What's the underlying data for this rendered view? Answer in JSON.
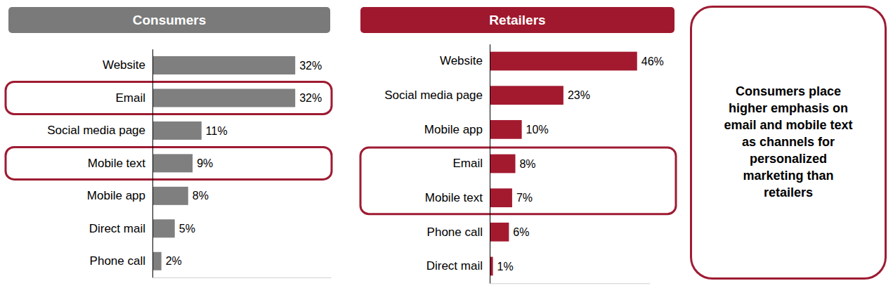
{
  "chart_data": [
    {
      "type": "bar",
      "orientation": "horizontal",
      "title": "Consumers",
      "categories": [
        "Website",
        "Email",
        "Social media page",
        "Mobile text",
        "Mobile app",
        "Direct mail",
        "Phone call"
      ],
      "values": [
        32,
        32,
        11,
        9,
        8,
        5,
        2
      ],
      "value_labels": [
        "32%",
        "32%",
        "11%",
        "9%",
        "8%",
        "5%",
        "2%"
      ],
      "color": "#7f7f7f",
      "xlim": [
        0,
        40
      ],
      "data_labels": true,
      "tick_labels": "y",
      "grid": false
    },
    {
      "type": "bar",
      "orientation": "horizontal",
      "title": "Retailers",
      "categories": [
        "Website",
        "Social media page",
        "Mobile app",
        "Email",
        "Mobile text",
        "Phone call",
        "Direct mail"
      ],
      "values": [
        46,
        23,
        10,
        8,
        7,
        6,
        1
      ],
      "value_labels": [
        "46%",
        "23%",
        "10%",
        "8%",
        "7%",
        "6%",
        "1%"
      ],
      "color": "#a31a2f",
      "xlim": [
        0,
        50
      ],
      "data_labels": true,
      "tick_labels": "y",
      "grid": false
    }
  ],
  "annotation": "Consumers place higher emphasis on email and mobile text as channels for personalized marketing than retailers"
}
